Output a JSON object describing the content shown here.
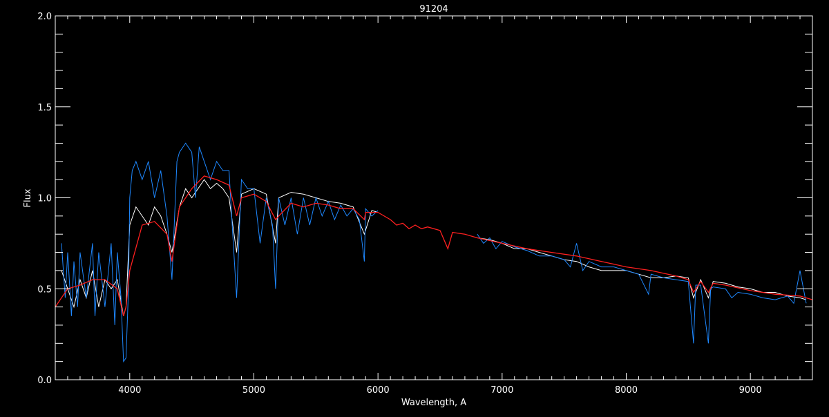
{
  "chart_data": {
    "type": "line",
    "title": "91204",
    "xlabel": "Wavelength, A",
    "ylabel": "Flux",
    "xlim": [
      3400,
      9500
    ],
    "ylim": [
      0,
      2.0
    ],
    "xticks": [
      4000,
      5000,
      6000,
      7000,
      8000,
      9000
    ],
    "xtick_labels": [
      "4000",
      "5000",
      "6000",
      "7000",
      "8000",
      "9000"
    ],
    "yticks": [
      0.0,
      0.5,
      1.0,
      1.5,
      2.0
    ],
    "ytick_labels": [
      "0.0",
      "0.5",
      "1.0",
      "1.5",
      "2.0"
    ],
    "grid": false,
    "background": "#000000",
    "series": [
      {
        "color": "#ffffff",
        "x": [
          3450,
          3500,
          3550,
          3600,
          3650,
          3700,
          3750,
          3800,
          3850,
          3900,
          3950,
          3970,
          4000,
          4050,
          4100,
          4150,
          4200,
          4250,
          4300,
          4340,
          4400,
          4450,
          4500,
          4550,
          4600,
          4650,
          4700,
          4750,
          4800,
          4861,
          4900,
          5000,
          5100,
          5175,
          5200,
          5300,
          5400,
          5500,
          5600,
          5700,
          5800,
          5890,
          5950,
          6000,
          6800,
          6900,
          7000,
          7100,
          7200,
          7300,
          7400,
          7500,
          7600,
          7700,
          7800,
          7900,
          8000,
          8100,
          8200,
          8300,
          8400,
          8500,
          8542,
          8600,
          8662,
          8700,
          8800,
          8900,
          9000,
          9100,
          9200,
          9300,
          9400,
          9450
        ],
        "y": [
          0.6,
          0.5,
          0.4,
          0.55,
          0.45,
          0.6,
          0.4,
          0.55,
          0.5,
          0.55,
          0.35,
          0.4,
          0.85,
          0.95,
          0.9,
          0.85,
          0.95,
          0.9,
          0.8,
          0.7,
          0.95,
          1.05,
          1.0,
          1.05,
          1.1,
          1.05,
          1.08,
          1.05,
          1.0,
          0.7,
          1.02,
          1.05,
          1.02,
          0.75,
          1.0,
          1.03,
          1.02,
          1.0,
          0.98,
          0.97,
          0.95,
          0.8,
          0.93,
          0.92,
          0.78,
          0.77,
          0.75,
          0.72,
          0.72,
          0.7,
          0.68,
          0.66,
          0.65,
          0.62,
          0.6,
          0.6,
          0.6,
          0.58,
          0.56,
          0.56,
          0.57,
          0.56,
          0.45,
          0.55,
          0.45,
          0.54,
          0.53,
          0.51,
          0.5,
          0.48,
          0.48,
          0.46,
          0.45,
          0.44
        ]
      },
      {
        "color": "#1e88ff",
        "x": [
          3450,
          3480,
          3500,
          3530,
          3550,
          3580,
          3600,
          3650,
          3700,
          3720,
          3750,
          3800,
          3850,
          3880,
          3900,
          3930,
          3950,
          3970,
          3990,
          4000,
          4020,
          4050,
          4100,
          4150,
          4200,
          4250,
          4300,
          4340,
          4380,
          4400,
          4450,
          4500,
          4530,
          4560,
          4600,
          4650,
          4700,
          4750,
          4800,
          4830,
          4861,
          4900,
          4950,
          5000,
          5050,
          5100,
          5150,
          5175,
          5200,
          5250,
          5300,
          5350,
          5400,
          5450,
          5500,
          5550,
          5600,
          5650,
          5700,
          5750,
          5800,
          5850,
          5890,
          5900,
          5950,
          6000,
          6800,
          6850,
          6900,
          6950,
          7000,
          7100,
          7200,
          7300,
          7400,
          7500,
          7550,
          7600,
          7650,
          7700,
          7800,
          7900,
          8000,
          8100,
          8180,
          8200,
          8300,
          8400,
          8500,
          8542,
          8560,
          8600,
          8662,
          8680,
          8700,
          8800,
          8850,
          8900,
          9000,
          9100,
          9200,
          9300,
          9350,
          9400,
          9450
        ],
        "y": [
          0.75,
          0.45,
          0.7,
          0.35,
          0.65,
          0.4,
          0.7,
          0.45,
          0.75,
          0.35,
          0.7,
          0.4,
          0.75,
          0.3,
          0.7,
          0.45,
          0.1,
          0.12,
          0.5,
          1.0,
          1.15,
          1.2,
          1.1,
          1.2,
          1.0,
          1.15,
          0.9,
          0.55,
          1.2,
          1.25,
          1.3,
          1.25,
          1.0,
          1.28,
          1.2,
          1.1,
          1.2,
          1.15,
          1.15,
          0.8,
          0.45,
          1.1,
          1.05,
          1.05,
          0.75,
          1.0,
          0.85,
          0.5,
          1.0,
          0.85,
          1.0,
          0.8,
          1.0,
          0.85,
          1.0,
          0.9,
          0.98,
          0.88,
          0.96,
          0.9,
          0.94,
          0.88,
          0.65,
          0.94,
          0.9,
          0.93,
          0.8,
          0.75,
          0.78,
          0.72,
          0.76,
          0.73,
          0.71,
          0.68,
          0.68,
          0.66,
          0.62,
          0.75,
          0.6,
          0.65,
          0.62,
          0.62,
          0.6,
          0.58,
          0.47,
          0.58,
          0.56,
          0.55,
          0.54,
          0.2,
          0.52,
          0.52,
          0.2,
          0.5,
          0.51,
          0.5,
          0.45,
          0.48,
          0.47,
          0.45,
          0.44,
          0.46,
          0.42,
          0.6,
          0.42
        ]
      },
      {
        "color": "#ff2020",
        "x": [
          3400,
          3450,
          3500,
          3600,
          3700,
          3800,
          3900,
          3950,
          3970,
          4000,
          4100,
          4200,
          4300,
          4340,
          4400,
          4500,
          4600,
          4700,
          4800,
          4861,
          4900,
          5000,
          5100,
          5175,
          5200,
          5300,
          5400,
          5500,
          5600,
          5700,
          5800,
          5890,
          5900,
          6000,
          6100,
          6150,
          6200,
          6250,
          6300,
          6350,
          6400,
          6500,
          6563,
          6600,
          6700,
          6800,
          7000,
          7200,
          7400,
          7600,
          7800,
          8000,
          8200,
          8400,
          8500,
          8542,
          8600,
          8662,
          8700,
          8800,
          9000,
          9200,
          9400,
          9500
        ],
        "y": [
          0.4,
          0.45,
          0.5,
          0.52,
          0.55,
          0.55,
          0.5,
          0.35,
          0.4,
          0.6,
          0.85,
          0.87,
          0.8,
          0.65,
          0.95,
          1.05,
          1.12,
          1.1,
          1.07,
          0.9,
          1.0,
          1.02,
          0.98,
          0.88,
          0.9,
          0.97,
          0.95,
          0.97,
          0.96,
          0.94,
          0.94,
          0.88,
          0.92,
          0.92,
          0.88,
          0.85,
          0.86,
          0.83,
          0.85,
          0.83,
          0.84,
          0.82,
          0.72,
          0.81,
          0.8,
          0.78,
          0.75,
          0.72,
          0.7,
          0.68,
          0.65,
          0.62,
          0.6,
          0.57,
          0.55,
          0.48,
          0.54,
          0.48,
          0.53,
          0.52,
          0.49,
          0.47,
          0.46,
          0.44
        ]
      }
    ]
  }
}
